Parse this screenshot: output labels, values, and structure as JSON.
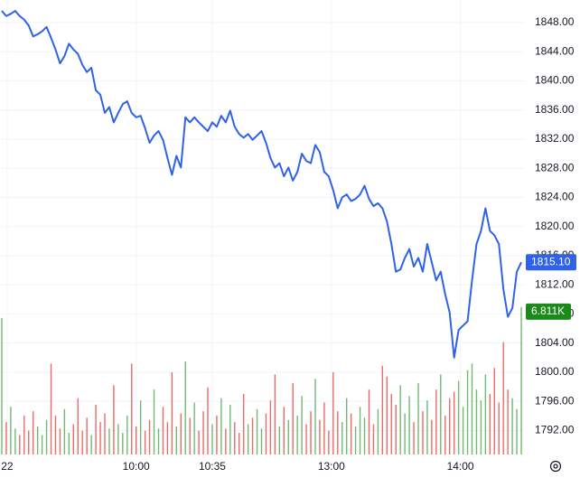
{
  "chart_data": {
    "type": "line",
    "series": [
      {
        "color": "#2f62e8",
        "last_label": "1815.10",
        "values": [
          1849.6,
          1848.9,
          1849.2,
          1849.6,
          1848.9,
          1848.4,
          1847.6,
          1846.1,
          1846.4,
          1846.8,
          1847.4,
          1845.9,
          1844.3,
          1842.4,
          1843.4,
          1845.1,
          1844.3,
          1843.7,
          1842.2,
          1841.2,
          1841.8,
          1838.7,
          1838.1,
          1835.6,
          1836.4,
          1834.3,
          1835.6,
          1836.8,
          1837.2,
          1835.6,
          1835.0,
          1835.2,
          1833.5,
          1831.5,
          1832.5,
          1833.1,
          1831.9,
          1829.4,
          1827.1,
          1829.7,
          1828.1,
          1835.0,
          1834.3,
          1835.0,
          1834.3,
          1833.7,
          1833.1,
          1834.3,
          1833.7,
          1835.2,
          1834.3,
          1835.9,
          1833.7,
          1832.7,
          1832.2,
          1832.7,
          1831.9,
          1832.5,
          1833.1,
          1831.5,
          1829.4,
          1828.1,
          1828.7,
          1826.9,
          1828.1,
          1826.3,
          1827.5,
          1830.0,
          1829.0,
          1828.7,
          1831.2,
          1830.2,
          1827.5,
          1826.9,
          1825.0,
          1822.5,
          1824.0,
          1824.4,
          1823.5,
          1823.8,
          1824.4,
          1825.6,
          1823.8,
          1822.8,
          1823.2,
          1822.5,
          1820.7,
          1817.6,
          1813.8,
          1814.1,
          1815.7,
          1816.9,
          1814.5,
          1815.7,
          1813.8,
          1817.6,
          1815.1,
          1812.6,
          1813.8,
          1810.7,
          1808.2,
          1802.0,
          1805.8,
          1806.4,
          1807.0,
          1812.6,
          1817.6,
          1819.4,
          1822.5,
          1819.4,
          1818.8,
          1817.6,
          1811.4,
          1807.6,
          1808.8,
          1813.8,
          1815.1
        ]
      }
    ],
    "volume": {
      "axis": "y2",
      "last_label": "6.811K",
      "up_color": "#43a047",
      "down_color": "#e53935",
      "values": [
        6300,
        1500,
        2200,
        1200,
        900,
        1800,
        1100,
        2000,
        1300,
        900,
        1600,
        4200,
        1800,
        1200,
        2100,
        1000,
        1400,
        2600,
        1100,
        1700,
        900,
        2300,
        1500,
        1900,
        1200,
        3200,
        1400,
        1000,
        1800,
        4200,
        1300,
        2500,
        1100,
        1600,
        3000,
        1200,
        2200,
        1500,
        3800,
        1300,
        1900,
        4300,
        1700,
        2400,
        1100,
        2000,
        3100,
        1400,
        1800,
        2600,
        1200,
        2300,
        1500,
        1000,
        2800,
        1400,
        1700,
        2100,
        1200,
        1900,
        2500,
        3700,
        1300,
        2200,
        1600,
        3300,
        1800,
        2700,
        1400,
        2000,
        3500,
        1600,
        2400,
        1100,
        3800,
        2000,
        1500,
        2600,
        1900,
        1300,
        2200,
        1700,
        3000,
        1400,
        2100,
        4100,
        3600,
        2800,
        2300,
        3200,
        1900,
        2700,
        1500,
        3300,
        2000,
        2500,
        1600,
        3000,
        3700,
        1800,
        2600,
        2900,
        3400,
        2200,
        3900,
        4200,
        3000,
        2500,
        3700,
        2800,
        4000,
        2400,
        5200,
        3000,
        2600,
        2100,
        6811
      ]
    },
    "xlim": [
      -0.4,
      116.6
    ],
    "xticks": [
      {
        "value": 1.2,
        "label": "22"
      },
      {
        "value": 30,
        "label": "10:00"
      },
      {
        "value": 47,
        "label": "10:35"
      },
      {
        "value": 73.6,
        "label": "13:00"
      },
      {
        "value": 102.4,
        "label": "14:00"
      }
    ],
    "ylim": [
      1788.7,
      1851.1
    ],
    "yticks": [
      {
        "value": 1792,
        "label": "1792.00"
      },
      {
        "value": 1796,
        "label": "1796.00"
      },
      {
        "value": 1800,
        "label": "1800.00"
      },
      {
        "value": 1804,
        "label": "1804.00"
      },
      {
        "value": 1808,
        "label": "1808.00"
      },
      {
        "value": 1812,
        "label": "1812.00"
      },
      {
        "value": 1816,
        "label": "1816.00"
      },
      {
        "value": 1820,
        "label": "1820.00"
      },
      {
        "value": 1824,
        "label": "1824.00"
      },
      {
        "value": 1828,
        "label": "1828.00"
      },
      {
        "value": 1832,
        "label": "1832.00"
      },
      {
        "value": 1836,
        "label": "1836.00"
      },
      {
        "value": 1840,
        "label": "1840.00"
      },
      {
        "value": 1844,
        "label": "1844.00"
      },
      {
        "value": 1848,
        "label": "1848.00"
      }
    ],
    "y2lim": [
      0,
      21000
    ],
    "grid": true
  }
}
